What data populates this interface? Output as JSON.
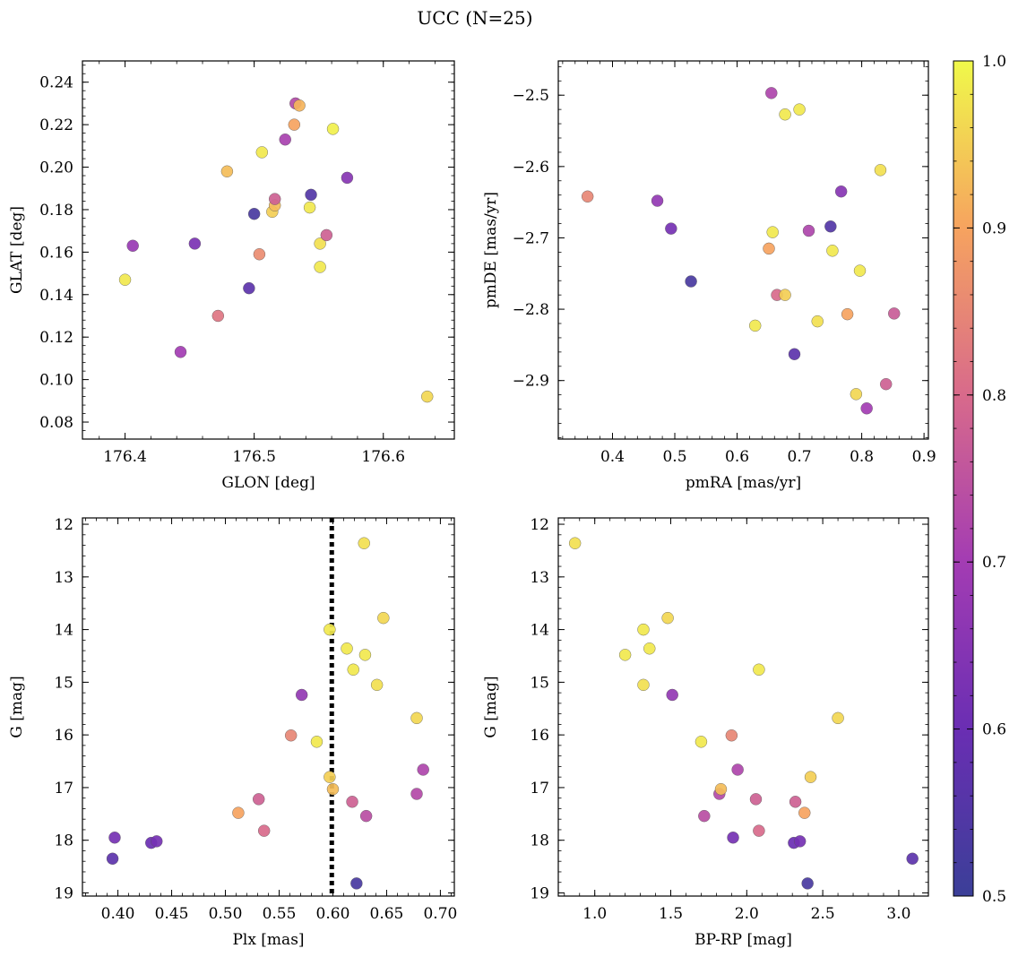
{
  "figure": {
    "title": "UCC (N=25)"
  },
  "colorbar": {
    "colormap": "plasma",
    "range": [
      0.5,
      1.0
    ],
    "ticks": [
      0.5,
      0.6,
      0.7,
      0.8,
      0.9,
      1.0
    ],
    "tick_labels": [
      "0.5",
      "0.6",
      "0.7",
      "0.8",
      "0.9",
      "1.0"
    ]
  },
  "chart_data": [
    {
      "type": "scatter",
      "xlabel": "GLON [deg]",
      "ylabel": "GLAT [deg]",
      "xlim": [
        176.367,
        176.655
      ],
      "ylim": [
        0.072,
        0.25
      ],
      "xticks": [
        176.4,
        176.5,
        176.6
      ],
      "xtick_labels": [
        "176.4",
        "176.5",
        "176.6"
      ],
      "yticks": [
        0.08,
        0.1,
        0.12,
        0.14,
        0.16,
        0.18,
        0.2,
        0.22,
        0.24
      ],
      "ytick_labels": [
        "0.08",
        "0.10",
        "0.12",
        "0.14",
        "0.16",
        "0.18",
        "0.20",
        "0.22",
        "0.24"
      ],
      "points": [
        {
          "x": 176.4,
          "y": 0.147,
          "c": 0.98
        },
        {
          "x": 176.406,
          "y": 0.163,
          "c": 0.68
        },
        {
          "x": 176.443,
          "y": 0.113,
          "c": 0.7
        },
        {
          "x": 176.454,
          "y": 0.164,
          "c": 0.63
        },
        {
          "x": 176.472,
          "y": 0.13,
          "c": 0.82
        },
        {
          "x": 176.479,
          "y": 0.198,
          "c": 0.93
        },
        {
          "x": 176.496,
          "y": 0.143,
          "c": 0.57
        },
        {
          "x": 176.5,
          "y": 0.178,
          "c": 0.53
        },
        {
          "x": 176.504,
          "y": 0.159,
          "c": 0.86
        },
        {
          "x": 176.506,
          "y": 0.207,
          "c": 0.98
        },
        {
          "x": 176.514,
          "y": 0.179,
          "c": 0.95
        },
        {
          "x": 176.516,
          "y": 0.182,
          "c": 0.93
        },
        {
          "x": 176.516,
          "y": 0.185,
          "c": 0.78
        },
        {
          "x": 176.524,
          "y": 0.213,
          "c": 0.71
        },
        {
          "x": 176.531,
          "y": 0.22,
          "c": 0.9
        },
        {
          "x": 176.532,
          "y": 0.23,
          "c": 0.73
        },
        {
          "x": 176.535,
          "y": 0.229,
          "c": 0.92
        },
        {
          "x": 176.543,
          "y": 0.181,
          "c": 0.98
        },
        {
          "x": 176.544,
          "y": 0.187,
          "c": 0.55
        },
        {
          "x": 176.551,
          "y": 0.164,
          "c": 0.97
        },
        {
          "x": 176.551,
          "y": 0.153,
          "c": 0.98
        },
        {
          "x": 176.556,
          "y": 0.168,
          "c": 0.78
        },
        {
          "x": 176.561,
          "y": 0.218,
          "c": 0.99
        },
        {
          "x": 176.572,
          "y": 0.195,
          "c": 0.65
        },
        {
          "x": 176.634,
          "y": 0.092,
          "c": 0.96
        }
      ]
    },
    {
      "type": "scatter",
      "xlabel": "pmRA [mas/yr]",
      "ylabel": "pmDE [mas/yr]",
      "xlim": [
        0.313,
        0.907
      ],
      "ylim": [
        -2.982,
        -2.452
      ],
      "xticks": [
        0.4,
        0.5,
        0.6,
        0.7,
        0.8,
        0.9
      ],
      "xtick_labels": [
        "0.4",
        "0.5",
        "0.6",
        "0.7",
        "0.8",
        "0.9"
      ],
      "yticks": [
        -2.9,
        -2.8,
        -2.7,
        -2.6,
        -2.5
      ],
      "ytick_labels": [
        "−2.9",
        "−2.8",
        "−2.7",
        "−2.6",
        "−2.5"
      ],
      "points": [
        {
          "x": 0.36,
          "y": -2.642,
          "c": 0.85
        },
        {
          "x": 0.472,
          "y": -2.648,
          "c": 0.67
        },
        {
          "x": 0.494,
          "y": -2.687,
          "c": 0.62
        },
        {
          "x": 0.526,
          "y": -2.761,
          "c": 0.53
        },
        {
          "x": 0.629,
          "y": -2.823,
          "c": 0.98
        },
        {
          "x": 0.651,
          "y": -2.715,
          "c": 0.9
        },
        {
          "x": 0.655,
          "y": -2.497,
          "c": 0.72
        },
        {
          "x": 0.657,
          "y": -2.692,
          "c": 0.98
        },
        {
          "x": 0.664,
          "y": -2.78,
          "c": 0.8
        },
        {
          "x": 0.677,
          "y": -2.527,
          "c": 0.98
        },
        {
          "x": 0.677,
          "y": -2.78,
          "c": 0.95
        },
        {
          "x": 0.692,
          "y": -2.863,
          "c": 0.57
        },
        {
          "x": 0.7,
          "y": -2.52,
          "c": 0.98
        },
        {
          "x": 0.715,
          "y": -2.69,
          "c": 0.72
        },
        {
          "x": 0.729,
          "y": -2.817,
          "c": 0.97
        },
        {
          "x": 0.75,
          "y": -2.684,
          "c": 0.55
        },
        {
          "x": 0.753,
          "y": -2.718,
          "c": 0.98
        },
        {
          "x": 0.767,
          "y": -2.635,
          "c": 0.65
        },
        {
          "x": 0.777,
          "y": -2.807,
          "c": 0.9
        },
        {
          "x": 0.791,
          "y": -2.919,
          "c": 0.96
        },
        {
          "x": 0.797,
          "y": -2.746,
          "c": 0.98
        },
        {
          "x": 0.808,
          "y": -2.939,
          "c": 0.7
        },
        {
          "x": 0.83,
          "y": -2.605,
          "c": 0.97
        },
        {
          "x": 0.839,
          "y": -2.905,
          "c": 0.78
        },
        {
          "x": 0.852,
          "y": -2.806,
          "c": 0.77
        }
      ]
    },
    {
      "type": "scatter",
      "xlabel": "Plx [mas]",
      "ylabel": "G [mag]",
      "xlim": [
        0.367,
        0.713
      ],
      "ylim": [
        19.06,
        11.88
      ],
      "xticks": [
        0.4,
        0.45,
        0.5,
        0.55,
        0.6,
        0.65,
        0.7
      ],
      "xtick_labels": [
        "0.40",
        "0.45",
        "0.50",
        "0.55",
        "0.60",
        "0.65",
        "0.70"
      ],
      "yticks": [
        12,
        13,
        14,
        15,
        16,
        17,
        18,
        19
      ],
      "ytick_labels": [
        "12",
        "13",
        "14",
        "15",
        "16",
        "17",
        "18",
        "19"
      ],
      "vline": {
        "x": 0.599,
        "style": "dotted"
      },
      "points": [
        {
          "x": 0.395,
          "y": 18.35,
          "c": 0.57
        },
        {
          "x": 0.397,
          "y": 17.95,
          "c": 0.62
        },
        {
          "x": 0.431,
          "y": 18.05,
          "c": 0.6
        },
        {
          "x": 0.436,
          "y": 18.02,
          "c": 0.62
        },
        {
          "x": 0.512,
          "y": 17.48,
          "c": 0.9
        },
        {
          "x": 0.531,
          "y": 17.22,
          "c": 0.78
        },
        {
          "x": 0.536,
          "y": 17.82,
          "c": 0.8
        },
        {
          "x": 0.561,
          "y": 16.01,
          "c": 0.85
        },
        {
          "x": 0.571,
          "y": 15.24,
          "c": 0.67
        },
        {
          "x": 0.585,
          "y": 16.13,
          "c": 0.98
        },
        {
          "x": 0.597,
          "y": 14.0,
          "c": 0.98
        },
        {
          "x": 0.597,
          "y": 16.8,
          "c": 0.95
        },
        {
          "x": 0.6,
          "y": 17.03,
          "c": 0.93
        },
        {
          "x": 0.613,
          "y": 14.36,
          "c": 0.98
        },
        {
          "x": 0.618,
          "y": 17.27,
          "c": 0.78
        },
        {
          "x": 0.619,
          "y": 14.76,
          "c": 0.98
        },
        {
          "x": 0.622,
          "y": 18.82,
          "c": 0.53
        },
        {
          "x": 0.629,
          "y": 12.36,
          "c": 0.97
        },
        {
          "x": 0.63,
          "y": 14.48,
          "c": 0.98
        },
        {
          "x": 0.631,
          "y": 17.54,
          "c": 0.74
        },
        {
          "x": 0.641,
          "y": 15.05,
          "c": 0.97
        },
        {
          "x": 0.647,
          "y": 13.78,
          "c": 0.96
        },
        {
          "x": 0.678,
          "y": 15.68,
          "c": 0.96
        },
        {
          "x": 0.678,
          "y": 17.12,
          "c": 0.73
        },
        {
          "x": 0.684,
          "y": 16.66,
          "c": 0.72
        }
      ]
    },
    {
      "type": "scatter",
      "xlabel": "BP-RP [mag]",
      "ylabel": "G [mag]",
      "xlim": [
        0.76,
        3.195
      ],
      "ylim": [
        19.06,
        11.88
      ],
      "xticks": [
        1.0,
        1.5,
        2.0,
        2.5,
        3.0
      ],
      "xtick_labels": [
        "1.0",
        "1.5",
        "2.0",
        "2.5",
        "3.0"
      ],
      "yticks": [
        12,
        13,
        14,
        15,
        16,
        17,
        18,
        19
      ],
      "ytick_labels": [
        "12",
        "13",
        "14",
        "15",
        "16",
        "17",
        "18",
        "19"
      ],
      "points": [
        {
          "x": 0.87,
          "y": 12.36,
          "c": 0.97
        },
        {
          "x": 1.2,
          "y": 14.48,
          "c": 0.98
        },
        {
          "x": 1.32,
          "y": 14.0,
          "c": 0.98
        },
        {
          "x": 1.32,
          "y": 15.05,
          "c": 0.97
        },
        {
          "x": 1.36,
          "y": 14.36,
          "c": 0.98
        },
        {
          "x": 1.48,
          "y": 13.78,
          "c": 0.96
        },
        {
          "x": 1.51,
          "y": 15.24,
          "c": 0.67
        },
        {
          "x": 1.7,
          "y": 16.13,
          "c": 0.98
        },
        {
          "x": 1.72,
          "y": 17.54,
          "c": 0.74
        },
        {
          "x": 1.82,
          "y": 17.12,
          "c": 0.73
        },
        {
          "x": 1.83,
          "y": 17.03,
          "c": 0.93
        },
        {
          "x": 1.9,
          "y": 16.01,
          "c": 0.85
        },
        {
          "x": 1.91,
          "y": 17.95,
          "c": 0.62
        },
        {
          "x": 1.94,
          "y": 16.66,
          "c": 0.72
        },
        {
          "x": 2.06,
          "y": 17.22,
          "c": 0.78
        },
        {
          "x": 2.08,
          "y": 14.76,
          "c": 0.98
        },
        {
          "x": 2.08,
          "y": 17.82,
          "c": 0.8
        },
        {
          "x": 2.31,
          "y": 18.05,
          "c": 0.6
        },
        {
          "x": 2.32,
          "y": 17.27,
          "c": 0.78
        },
        {
          "x": 2.35,
          "y": 18.02,
          "c": 0.62
        },
        {
          "x": 2.38,
          "y": 17.48,
          "c": 0.9
        },
        {
          "x": 2.4,
          "y": 18.82,
          "c": 0.53
        },
        {
          "x": 2.42,
          "y": 16.8,
          "c": 0.95
        },
        {
          "x": 2.6,
          "y": 15.68,
          "c": 0.96
        },
        {
          "x": 3.09,
          "y": 18.35,
          "c": 0.57
        }
      ]
    }
  ]
}
